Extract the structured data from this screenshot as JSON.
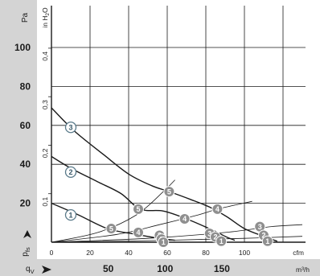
{
  "chart_data": {
    "type": "line",
    "title": "",
    "colors": {
      "band": "#d4d4d4",
      "grid": "#1a1a1a",
      "fan_curve": "#1a1a1a",
      "system_line": "#1a1a1a",
      "label_open_fill": "#ffffff",
      "label_open_stroke": "#5a7a8a",
      "label_open_text": "#3a5a6a",
      "label_filled_fill": "#8f8f8f",
      "label_filled_text": "#ffffff"
    },
    "y_axis_left": {
      "title": "p",
      "title_sub": "fs",
      "unit": "Pa",
      "range": [
        0,
        110
      ],
      "ticks": [
        {
          "value": 20,
          "label": "20"
        },
        {
          "value": 40,
          "label": "40"
        },
        {
          "value": 60,
          "label": "60"
        },
        {
          "value": 80,
          "label": "80"
        },
        {
          "value": 100,
          "label": "100"
        }
      ]
    },
    "y_axis_inner": {
      "unit": "in H",
      "unit_sub": "2",
      "unit_end": "O",
      "ticks": [
        {
          "value": 0.1,
          "label": "0,1"
        },
        {
          "value": 0.2,
          "label": "0,2"
        },
        {
          "value": 0.3,
          "label": "0,3"
        },
        {
          "value": 0.4,
          "label": "0,4"
        }
      ]
    },
    "x_axis_cfm": {
      "unit": "cfm",
      "range": [
        0,
        120
      ],
      "ticks": [
        {
          "value": 0,
          "label": "0"
        },
        {
          "value": 20,
          "label": "20"
        },
        {
          "value": 40,
          "label": "40"
        },
        {
          "value": 60,
          "label": "60"
        },
        {
          "value": 80,
          "label": "80"
        },
        {
          "value": 100,
          "label": "100"
        }
      ]
    },
    "x_axis_m3h": {
      "title": "q",
      "title_sub": "V",
      "unit": "m³/h",
      "ticks": [
        {
          "value": 50,
          "label": "50"
        },
        {
          "value": 100,
          "label": "100"
        },
        {
          "value": 150,
          "label": "150"
        }
      ]
    },
    "series": [
      {
        "name": "1",
        "points": [
          [
            0,
            20
          ],
          [
            14,
            14
          ],
          [
            29,
            7
          ],
          [
            44,
            4
          ],
          [
            56,
            2
          ],
          [
            64,
            1
          ]
        ]
      },
      {
        "name": "2",
        "points": [
          [
            0,
            44
          ],
          [
            10,
            38
          ],
          [
            24,
            31
          ],
          [
            36,
            25
          ],
          [
            46,
            17
          ],
          [
            58,
            16
          ],
          [
            70,
            12
          ],
          [
            84,
            6
          ],
          [
            90,
            3
          ],
          [
            95,
            1
          ]
        ]
      },
      {
        "name": "3",
        "points": [
          [
            0,
            69
          ],
          [
            12,
            57
          ],
          [
            27,
            45
          ],
          [
            40,
            35
          ],
          [
            52,
            29
          ],
          [
            61,
            26
          ],
          [
            72,
            22
          ],
          [
            82,
            18
          ],
          [
            91,
            13
          ],
          [
            100,
            7
          ],
          [
            110,
            3
          ],
          [
            117,
            0.5
          ]
        ]
      }
    ],
    "system_lines": [
      {
        "points": [
          [
            0,
            0
          ],
          [
            24,
            5
          ],
          [
            44,
            14
          ],
          [
            58,
            26
          ],
          [
            64,
            32
          ]
        ]
      },
      {
        "points": [
          [
            0,
            0
          ],
          [
            34,
            4
          ],
          [
            56,
            9
          ],
          [
            76,
            14
          ],
          [
            86,
            17
          ],
          [
            104,
            21
          ]
        ]
      },
      {
        "points": [
          [
            0,
            0
          ],
          [
            50,
            2
          ],
          [
            90,
            5
          ],
          [
            114,
            8
          ],
          [
            130,
            9
          ]
        ]
      },
      {
        "points": [
          [
            0,
            0
          ],
          [
            60,
            1
          ],
          [
            100,
            2
          ],
          [
            130,
            3
          ]
        ]
      }
    ],
    "operating_points": [
      {
        "label": "5",
        "style": "filled",
        "x": 61,
        "y": 26
      },
      {
        "label": "4",
        "style": "filled",
        "x": 86,
        "y": 17
      },
      {
        "label": "5",
        "style": "filled",
        "x": 45,
        "y": 17
      },
      {
        "label": "4",
        "style": "filled",
        "x": 69,
        "y": 12
      },
      {
        "label": "3",
        "style": "filled",
        "x": 108,
        "y": 8
      },
      {
        "label": "5",
        "style": "filled",
        "x": 31,
        "y": 7
      },
      {
        "label": "3",
        "style": "filled",
        "x": 82,
        "y": 4.5
      },
      {
        "label": "4",
        "style": "filled",
        "x": 45,
        "y": 5
      },
      {
        "label": "2",
        "style": "filled",
        "x": 85,
        "y": 2.7
      },
      {
        "label": "2",
        "style": "filled",
        "x": 110,
        "y": 3.5
      },
      {
        "label": "3",
        "style": "filled",
        "x": 56,
        "y": 3.5
      },
      {
        "label": "1",
        "style": "filled",
        "x": 88,
        "y": 0.5
      },
      {
        "label": "1",
        "style": "filled",
        "x": 112,
        "y": 0.5
      },
      {
        "label": "2",
        "style": "filled",
        "x": 57,
        "y": 1.6
      },
      {
        "label": "1",
        "style": "filled",
        "x": 58,
        "y": 0
      },
      {
        "label": "3",
        "style": "open",
        "x": 10,
        "y": 59
      },
      {
        "label": "2",
        "style": "open",
        "x": 10,
        "y": 36
      },
      {
        "label": "1",
        "style": "open",
        "x": 10,
        "y": 14
      }
    ]
  }
}
